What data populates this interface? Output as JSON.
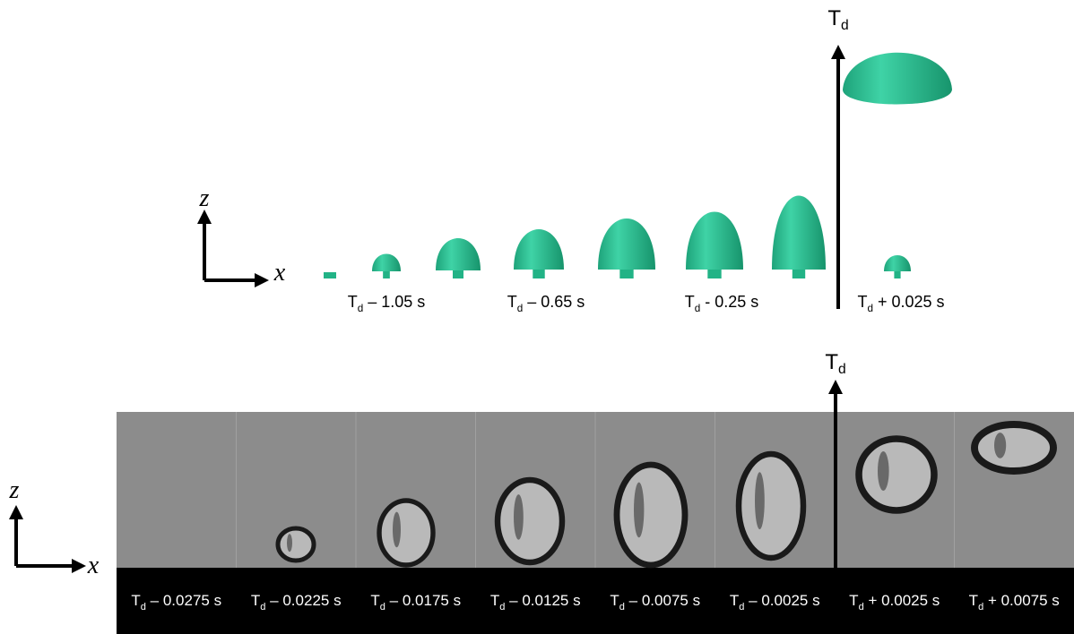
{
  "top": {
    "axis": {
      "z": "z",
      "x": "x"
    },
    "marker": {
      "main": "T",
      "sub": "d"
    },
    "labels": [
      {
        "main": "T",
        "sub": "d",
        "rest": " – 1.05 s"
      },
      {
        "main": "T",
        "sub": "d",
        "rest": " – 0.65 s"
      },
      {
        "main": "T",
        "sub": "d",
        "rest": " - 0.25 s"
      },
      {
        "main": "T",
        "sub": "d",
        "rest": " + 0.025 s"
      }
    ]
  },
  "bottom": {
    "axis": {
      "z": "z",
      "x": "x"
    },
    "marker": {
      "main": "T",
      "sub": "d"
    },
    "labels": [
      {
        "main": "T",
        "sub": "d",
        "rest": " – 0.0275 s"
      },
      {
        "main": "T",
        "sub": "d",
        "rest": " – 0.0225 s"
      },
      {
        "main": "T",
        "sub": "d",
        "rest": " – 0.0175 s"
      },
      {
        "main": "T",
        "sub": "d",
        "rest": " – 0.0125 s"
      },
      {
        "main": "T",
        "sub": "d",
        "rest": " – 0.0075 s"
      },
      {
        "main": "T",
        "sub": "d",
        "rest": " – 0.0025 s"
      },
      {
        "main": "T",
        "sub": "d",
        "rest": " + 0.0025 s"
      },
      {
        "main": "T",
        "sub": "d",
        "rest": " + 0.0075 s"
      }
    ]
  }
}
